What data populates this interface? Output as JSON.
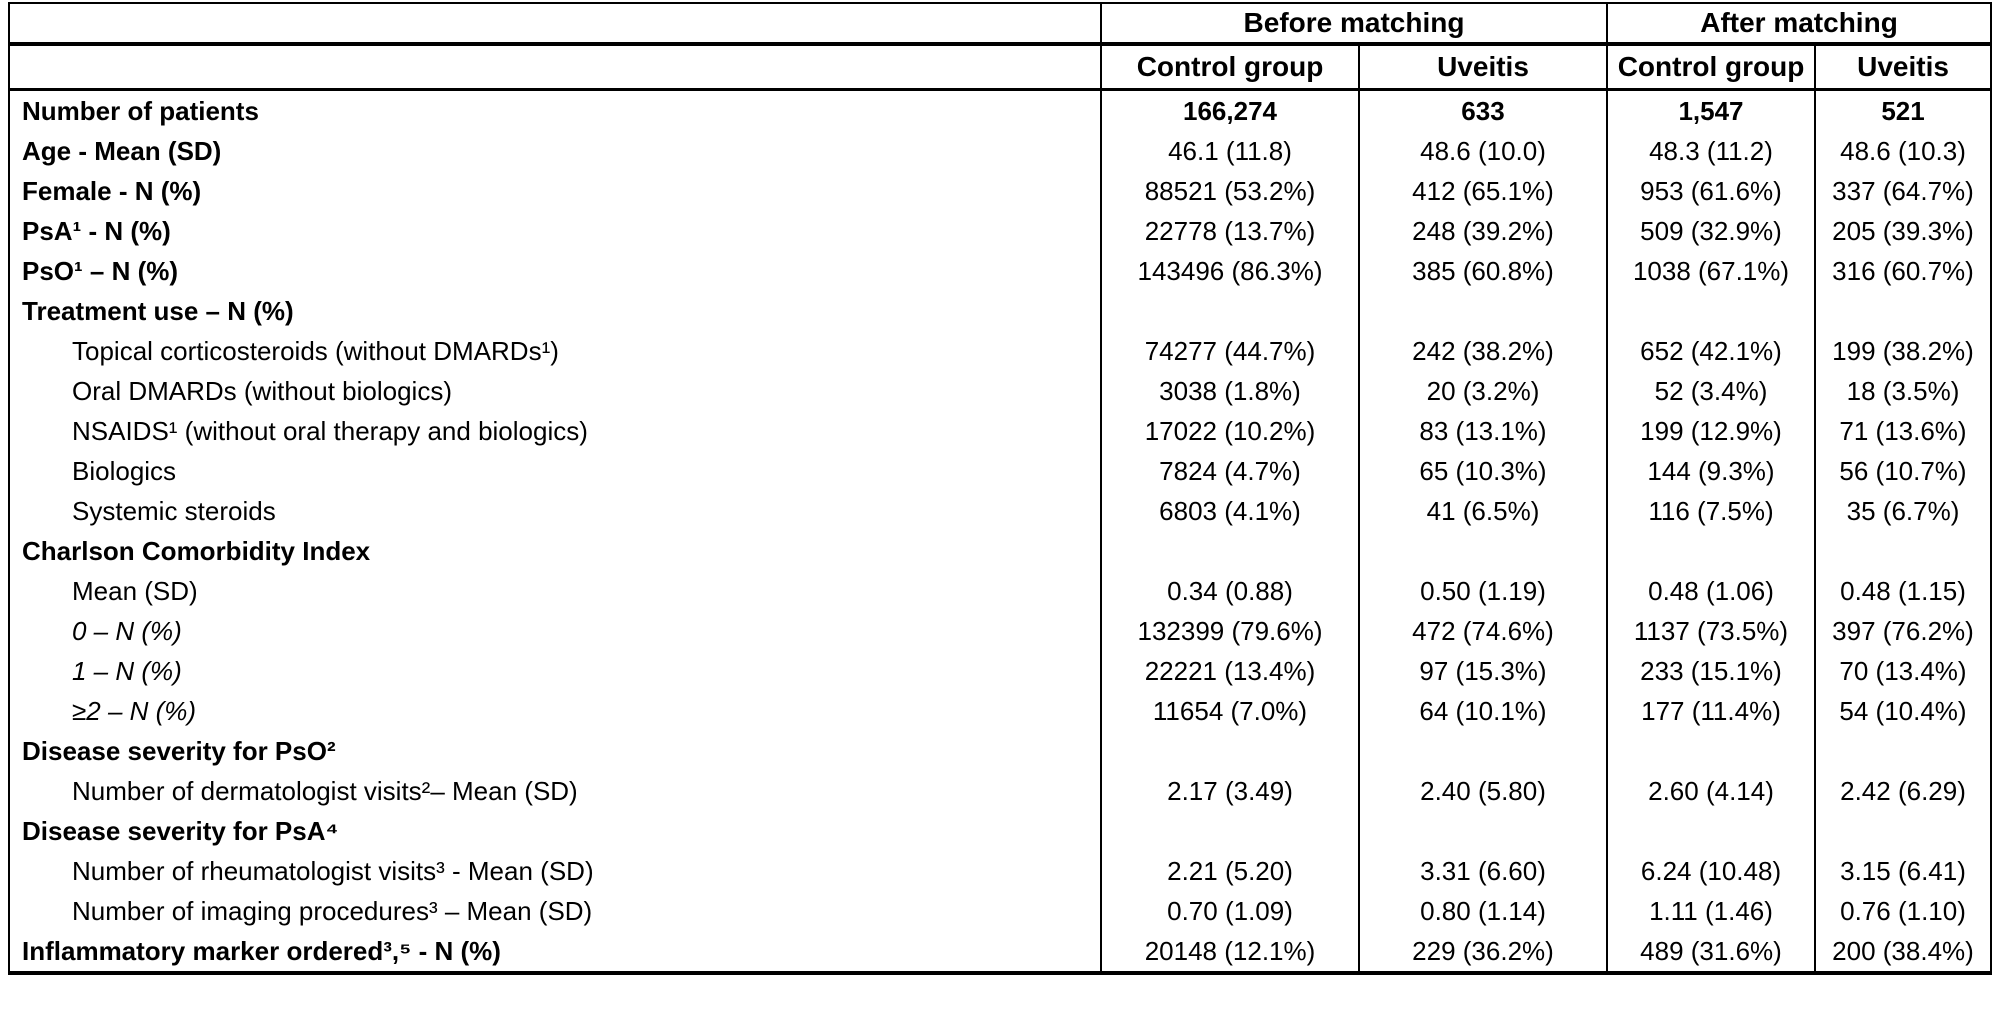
{
  "table": {
    "group_headers": [
      {
        "label": "Before matching"
      },
      {
        "label": "After matching"
      }
    ],
    "column_headers": [
      "Control group",
      "Uveitis",
      "Control group",
      "Uveitis"
    ],
    "rows": [
      {
        "label": "Number of patients",
        "bold": true,
        "indent": false,
        "italic": false,
        "values_bold": true,
        "values": [
          "166,274",
          "633",
          "1,547",
          "521"
        ]
      },
      {
        "label": "Age - Mean (SD)",
        "bold": true,
        "indent": false,
        "italic": false,
        "values_bold": false,
        "values": [
          "46.1 (11.8)",
          "48.6 (10.0)",
          "48.3 (11.2)",
          "48.6 (10.3)"
        ]
      },
      {
        "label": "Female - N (%)",
        "bold": true,
        "indent": false,
        "italic": false,
        "values_bold": false,
        "values": [
          "88521 (53.2%)",
          "412 (65.1%)",
          "953 (61.6%)",
          "337 (64.7%)"
        ]
      },
      {
        "label": "PsA¹ - N (%)",
        "bold": true,
        "indent": false,
        "italic": false,
        "values_bold": false,
        "values": [
          "22778 (13.7%)",
          "248 (39.2%)",
          "509 (32.9%)",
          "205 (39.3%)"
        ]
      },
      {
        "label": "PsO¹ – N (%)",
        "bold": true,
        "indent": false,
        "italic": false,
        "values_bold": false,
        "values": [
          "143496 (86.3%)",
          "385 (60.8%)",
          "1038 (67.1%)",
          "316 (60.7%)"
        ]
      },
      {
        "label": "Treatment use – N (%)",
        "bold": true,
        "indent": false,
        "italic": false,
        "values_bold": false,
        "values": [
          "",
          "",
          "",
          ""
        ]
      },
      {
        "label": "Topical corticosteroids (without DMARDs¹)",
        "bold": false,
        "indent": true,
        "italic": false,
        "values_bold": false,
        "values": [
          "74277 (44.7%)",
          "242 (38.2%)",
          "652 (42.1%)",
          "199 (38.2%)"
        ]
      },
      {
        "label": "Oral DMARDs (without biologics)",
        "bold": false,
        "indent": true,
        "italic": false,
        "values_bold": false,
        "values": [
          "3038 (1.8%)",
          "20 (3.2%)",
          "52 (3.4%)",
          "18 (3.5%)"
        ]
      },
      {
        "label": "NSAIDS¹ (without oral therapy and biologics)",
        "bold": false,
        "indent": true,
        "italic": false,
        "values_bold": false,
        "values": [
          "17022 (10.2%)",
          "83 (13.1%)",
          "199 (12.9%)",
          "71 (13.6%)"
        ]
      },
      {
        "label": "Biologics",
        "bold": false,
        "indent": true,
        "italic": false,
        "values_bold": false,
        "values": [
          "7824 (4.7%)",
          "65 (10.3%)",
          "144 (9.3%)",
          "56 (10.7%)"
        ]
      },
      {
        "label": "Systemic steroids",
        "bold": false,
        "indent": true,
        "italic": false,
        "values_bold": false,
        "values": [
          "6803 (4.1%)",
          "41 (6.5%)",
          "116 (7.5%)",
          "35 (6.7%)"
        ]
      },
      {
        "label": "Charlson Comorbidity Index",
        "bold": true,
        "indent": false,
        "italic": false,
        "values_bold": false,
        "values": [
          "",
          "",
          "",
          ""
        ]
      },
      {
        "label": "Mean (SD)",
        "bold": false,
        "indent": true,
        "italic": false,
        "values_bold": false,
        "values": [
          "0.34 (0.88)",
          "0.50 (1.19)",
          "0.48 (1.06)",
          "0.48 (1.15)"
        ]
      },
      {
        "label": "0 – N (%)",
        "bold": false,
        "indent": true,
        "italic": true,
        "values_bold": false,
        "values": [
          "132399 (79.6%)",
          "472 (74.6%)",
          "1137 (73.5%)",
          "397 (76.2%)"
        ]
      },
      {
        "label": "1 – N (%)",
        "bold": false,
        "indent": true,
        "italic": true,
        "values_bold": false,
        "values": [
          "22221 (13.4%)",
          "97 (15.3%)",
          "233 (15.1%)",
          "70 (13.4%)"
        ]
      },
      {
        "label": "≥2 – N (%)",
        "bold": false,
        "indent": true,
        "italic": true,
        "values_bold": false,
        "values": [
          "11654 (7.0%)",
          "64 (10.1%)",
          "177 (11.4%)",
          "54 (10.4%)"
        ]
      },
      {
        "label": "Disease severity for PsO²",
        "bold": true,
        "indent": false,
        "italic": false,
        "values_bold": false,
        "values": [
          "",
          "",
          "",
          ""
        ]
      },
      {
        "label": "Number of dermatologist visits²– Mean (SD)",
        "bold": false,
        "indent": true,
        "italic": false,
        "values_bold": false,
        "values": [
          "2.17 (3.49)",
          "2.40 (5.80)",
          "2.60 (4.14)",
          "2.42 (6.29)"
        ]
      },
      {
        "label": "Disease severity for PsA⁴",
        "bold": true,
        "indent": false,
        "italic": false,
        "values_bold": false,
        "values": [
          "",
          "",
          "",
          ""
        ]
      },
      {
        "label": "Number of rheumatologist visits³ - Mean (SD)",
        "bold": false,
        "indent": true,
        "italic": false,
        "values_bold": false,
        "values": [
          "2.21 (5.20)",
          "3.31 (6.60)",
          "6.24 (10.48)",
          "3.15 (6.41)"
        ]
      },
      {
        "label": "Number of imaging procedures³ – Mean (SD)",
        "bold": false,
        "indent": true,
        "italic": false,
        "values_bold": false,
        "values": [
          "0.70 (1.09)",
          "0.80 (1.14)",
          "1.11 (1.46)",
          "0.76 (1.10)"
        ]
      },
      {
        "label": "Inflammatory marker ordered³,⁵ - N (%)",
        "bold": true,
        "indent": false,
        "italic": false,
        "values_bold": false,
        "values": [
          "20148 (12.1%)",
          "229 (36.2%)",
          "489 (31.6%)",
          "200 (38.4%)"
        ]
      }
    ]
  }
}
